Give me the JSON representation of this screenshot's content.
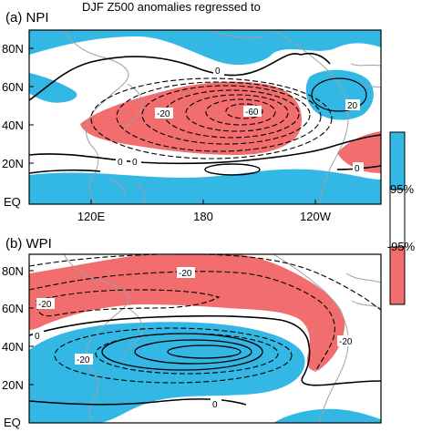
{
  "figure": {
    "title_fragment": "DJF Z500 anomalies regressed to"
  },
  "panels": [
    {
      "label": "(a) NPI",
      "lat_ticks": [
        "80N",
        "60N",
        "40N",
        "20N",
        "EQ"
      ],
      "lon_ticks": [
        "120E",
        "180",
        "120W"
      ],
      "contour_labels": [
        "0",
        "0",
        "0",
        "-20",
        "-60",
        "20",
        "0"
      ]
    },
    {
      "label": "(b) WPI",
      "lat_ticks": [
        "80N",
        "60N",
        "40N",
        "20N",
        "EQ"
      ],
      "contour_labels": [
        "-20",
        "-20",
        "-20",
        "0",
        "-20",
        "0"
      ]
    }
  ],
  "colorbar": {
    "upper_label": "95%",
    "lower_label": "-95%",
    "colors": {
      "positive": "#33b8e6",
      "negative": "#f26e6e"
    }
  },
  "colors": {
    "positive_significant": "#33b8e6",
    "negative_significant": "#f26e6e",
    "coastline": "#a0a0a0"
  }
}
